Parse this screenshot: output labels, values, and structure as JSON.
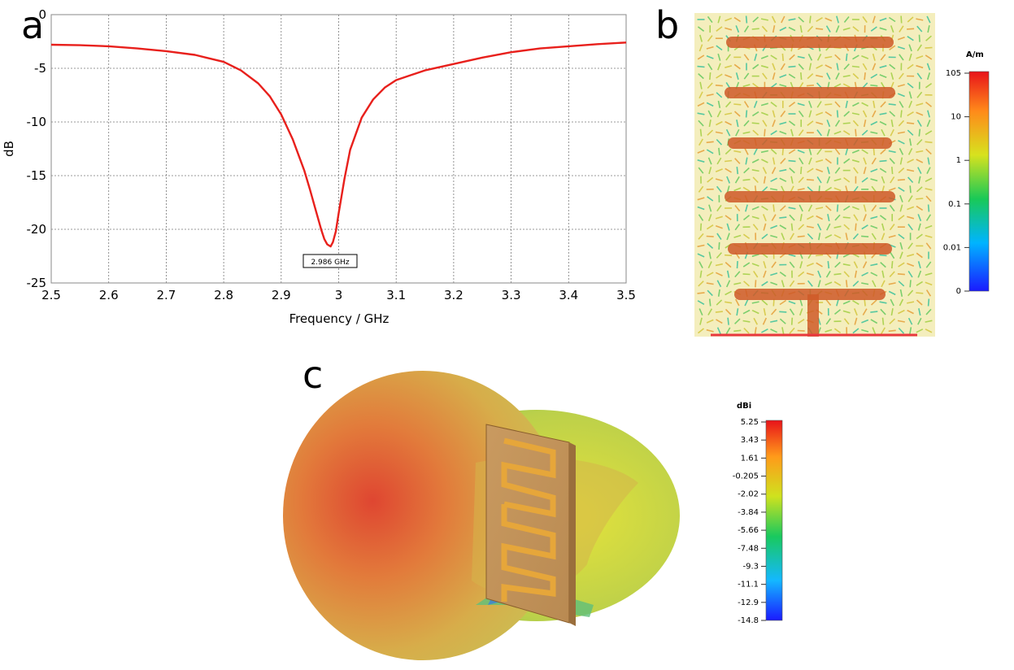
{
  "panels": {
    "a": "a",
    "b": "b",
    "c": "c"
  },
  "chart_data": [
    {
      "type": "line",
      "panel": "a",
      "xlabel": "Frequency / GHz",
      "ylabel": "dB",
      "xlim": [
        2.5,
        3.5
      ],
      "ylim": [
        -25,
        0
      ],
      "xticks": [
        "2.5",
        "2.6",
        "2.7",
        "2.8",
        "2.9",
        "3",
        "3.1",
        "3.2",
        "3.3",
        "3.4",
        "3.5"
      ],
      "yticks": [
        "0",
        "-5",
        "-10",
        "-15",
        "-20",
        "-25"
      ],
      "grid": true,
      "line_color": "#e8201c",
      "marker_label": "2.986 GHz",
      "series": [
        {
          "x": [
            2.5,
            2.55,
            2.6,
            2.65,
            2.7,
            2.75,
            2.8,
            2.83,
            2.86,
            2.88,
            2.9,
            2.92,
            2.94,
            2.95,
            2.96,
            2.97,
            2.975,
            2.98,
            2.986,
            2.99,
            2.995,
            3.0,
            3.01,
            3.02,
            3.04,
            3.06,
            3.08,
            3.1,
            3.15,
            3.2,
            3.25,
            3.3,
            3.35,
            3.4,
            3.45,
            3.5
          ],
          "y": [
            -2.8,
            -2.85,
            -2.95,
            -3.15,
            -3.4,
            -3.75,
            -4.4,
            -5.2,
            -6.4,
            -7.6,
            -9.3,
            -11.6,
            -14.5,
            -16.3,
            -18.2,
            -20.1,
            -20.9,
            -21.4,
            -21.6,
            -21.2,
            -20.2,
            -18.5,
            -15.3,
            -12.6,
            -9.6,
            -7.9,
            -6.8,
            -6.1,
            -5.2,
            -4.6,
            -4.0,
            -3.5,
            -3.15,
            -2.95,
            -2.75,
            -2.6
          ]
        }
      ]
    },
    {
      "type": "heatmap",
      "panel": "b",
      "unit": "A/m",
      "scale": "log",
      "colorbar_ticks": [
        "105",
        "10",
        "1",
        "0.1",
        "0.01",
        "0"
      ]
    },
    {
      "type": "heatmap",
      "panel": "c",
      "unit": "dBi",
      "colorbar_ticks": [
        "5.25",
        "3.43",
        "1.61",
        "-0.205",
        "-2.02",
        "-3.84",
        "-5.66",
        "-7.48",
        "-9.3",
        "-11.1",
        "-12.9",
        "-14.8"
      ]
    }
  ]
}
